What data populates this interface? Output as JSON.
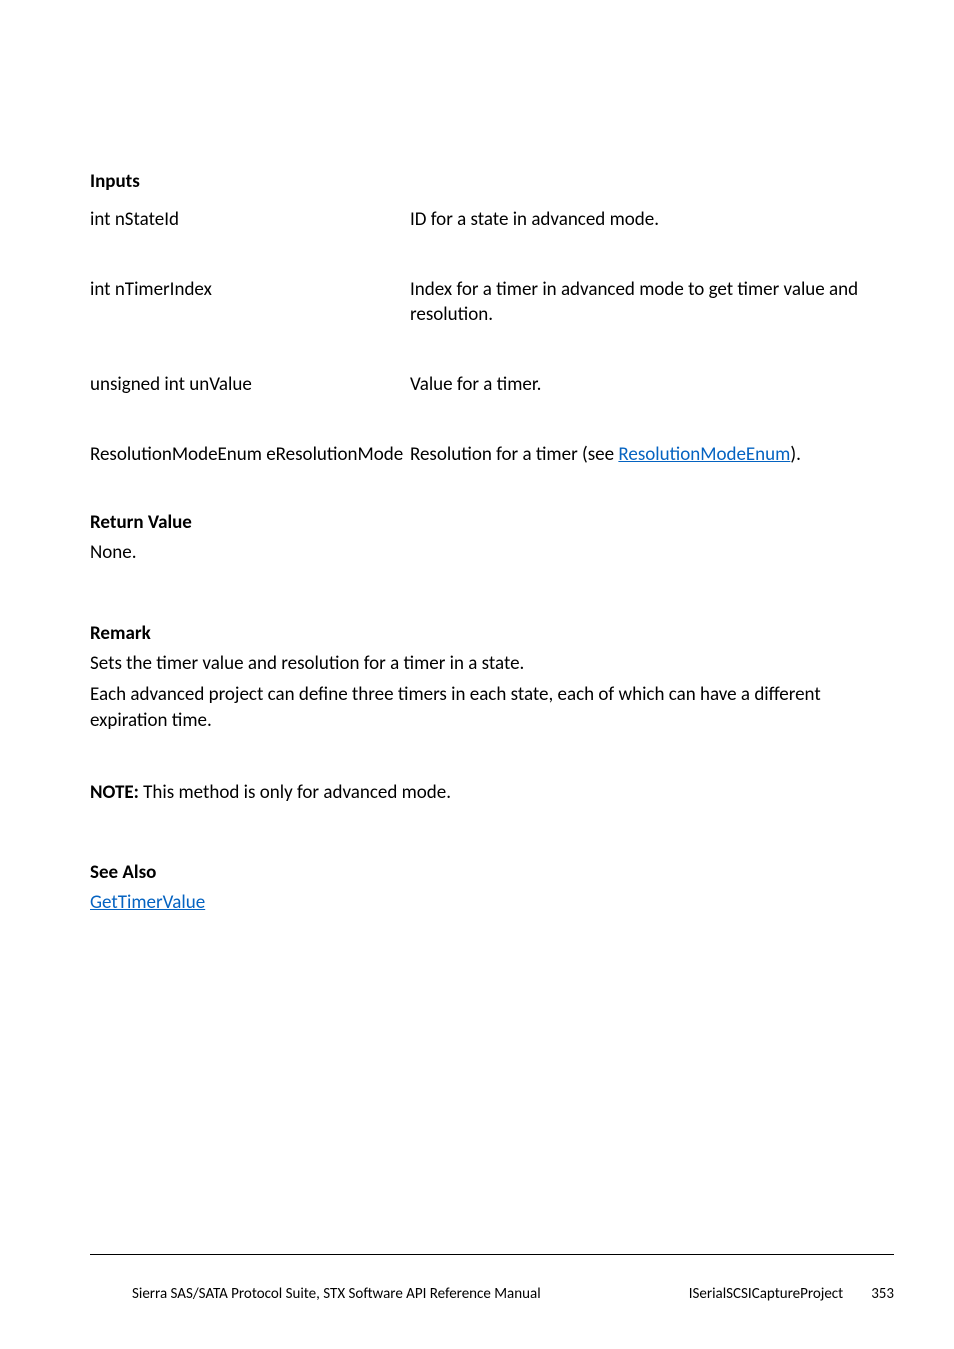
{
  "inputs_heading": "Inputs",
  "params": [
    {
      "name": "int nStateId",
      "desc": "ID for a state in advanced mode."
    },
    {
      "name": "int nTimerIndex",
      "desc": "Index for a timer in advanced mode to get timer value and resolution."
    },
    {
      "name": "unsigned int unValue",
      "desc": "Value for a timer."
    },
    {
      "name": "ResolutionModeEnum eResolutionMode",
      "desc_prefix": "Resolution for a timer (see ",
      "desc_link": "ResolutionModeEnum",
      "desc_suffix": ")."
    }
  ],
  "return_heading": "Return Value",
  "return_text": "None.",
  "remark_heading": "Remark",
  "remark_line1": "Sets the timer value and resolution for a timer in a state.",
  "remark_line2": "Each advanced project can define three timers in each state, each of which can have a different expiration time.",
  "note_label": "NOTE:",
  "note_text": " This method is only for advanced mode.",
  "seealso_heading": "See Also",
  "seealso_link": "GetTimerValue",
  "footer": {
    "manual_title": "Sierra SAS/SATA Protocol Suite, STX Software API Reference Manual",
    "interface": "ISerialSCSICaptureProject",
    "page_number": "353"
  }
}
